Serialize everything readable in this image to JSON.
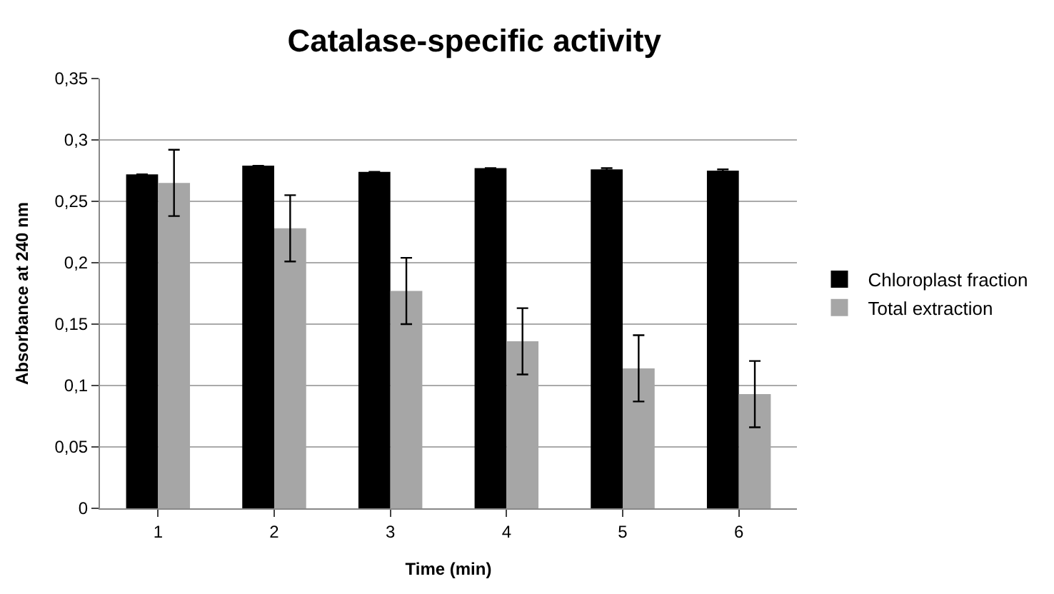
{
  "chart_data": {
    "type": "bar",
    "title": "Catalase-specific activity",
    "xlabel": "Time (min)",
    "ylabel": "Absorbance at 240 nm",
    "categories": [
      "1",
      "2",
      "3",
      "4",
      "5",
      "6"
    ],
    "series": [
      {
        "name": "Chloroplast fraction",
        "color": "#000000",
        "values": [
          0.272,
          0.279,
          0.274,
          0.277,
          0.276,
          0.275
        ],
        "errors": [
          null,
          null,
          null,
          null,
          0.001,
          0.001
        ]
      },
      {
        "name": "Total extraction",
        "color": "#a6a6a6",
        "values": [
          0.265,
          0.228,
          0.177,
          0.136,
          0.114,
          0.093
        ],
        "errors": [
          0.027,
          0.027,
          0.027,
          0.027,
          0.027,
          0.027
        ]
      }
    ],
    "ylim": [
      0,
      0.35
    ],
    "yticks": [
      {
        "value": 0,
        "label": "0"
      },
      {
        "value": 0.05,
        "label": "0,05"
      },
      {
        "value": 0.1,
        "label": "0,1"
      },
      {
        "value": 0.15,
        "label": "0,15"
      },
      {
        "value": 0.2,
        "label": "0,2"
      },
      {
        "value": 0.25,
        "label": "0,25"
      },
      {
        "value": 0.3,
        "label": "0,3"
      },
      {
        "value": 0.35,
        "label": "0,35"
      }
    ],
    "grid": "y",
    "legend": "right"
  }
}
